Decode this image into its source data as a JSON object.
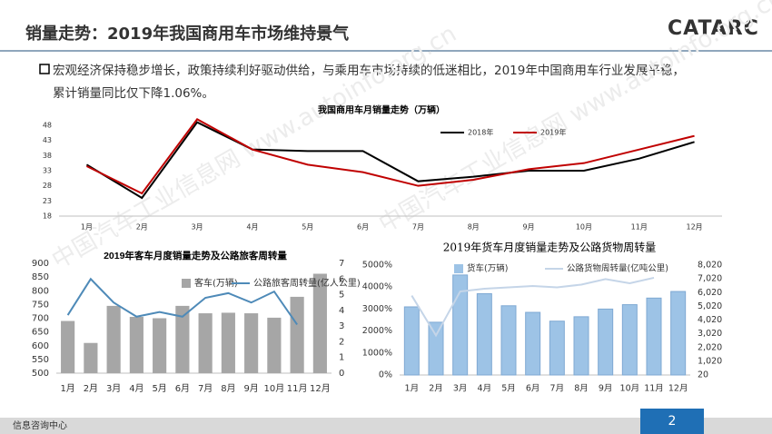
{
  "header": {
    "title": "销量走势：2019年我国商用车市场维持景气",
    "logo": "CATARC"
  },
  "bullet": {
    "lines": [
      "宏观经济保持稳步增长，政策持续利好驱动供给，与乘用车市场持续的低迷相比，2019年中国商用车行业发展平稳，",
      "累计销量同比仅下降1.06%。"
    ]
  },
  "watermark": "中国汽车工业信息网 www.autoinfo.org.cn",
  "footer": {
    "org": "信息咨询中心",
    "page": "2"
  },
  "chart_data": [
    {
      "type": "line",
      "title": "我国商用车月销量走势（万辆）",
      "categories": [
        "1月",
        "2月",
        "3月",
        "4月",
        "5月",
        "6月",
        "7月",
        "8月",
        "9月",
        "10月",
        "11月",
        "12月"
      ],
      "ylim": [
        18,
        51
      ],
      "yticks": [
        18,
        23,
        28,
        33,
        38,
        43,
        48
      ],
      "series": [
        {
          "name": "2018年",
          "type": "line",
          "color": "#000000",
          "values": [
            35,
            24,
            49,
            40,
            39.5,
            39.5,
            29.5,
            31,
            33,
            33,
            37,
            42.5
          ]
        },
        {
          "name": "2019年",
          "type": "line",
          "color": "#c00000",
          "values": [
            34.5,
            25.5,
            50,
            40,
            35,
            32.5,
            28,
            30,
            33.5,
            35.5,
            40,
            44.5
          ]
        }
      ]
    },
    {
      "type": "bar",
      "title": "2019年客车月度销量走势及公路旅客周转量",
      "categories": [
        "1月",
        "2月",
        "3月",
        "4月",
        "5月",
        "6月",
        "7月",
        "8月",
        "9月",
        "10月",
        "11月",
        "12月"
      ],
      "ylim": [
        500,
        900
      ],
      "yticks": [
        500,
        550,
        600,
        650,
        700,
        750,
        800,
        850,
        900
      ],
      "y2lim": [
        0,
        7
      ],
      "y2ticks": [
        0,
        1,
        2,
        3,
        4,
        5,
        6,
        7
      ],
      "series": [
        {
          "name": "客车(万辆)",
          "type": "bar",
          "color": "#a6a6a6",
          "values": [
            690,
            610,
            745,
            705,
            700,
            745,
            718,
            720,
            718,
            702,
            778,
            862
          ]
        },
        {
          "name": "公路旅客周转量(亿人公里)",
          "type": "line",
          "axis": "y2",
          "color": "#4e8ab8",
          "values": [
            3.7,
            6,
            4.5,
            3.6,
            3.9,
            3.6,
            4.8,
            5.1,
            4.5,
            5.2,
            3.1,
            null
          ]
        }
      ]
    },
    {
      "type": "bar",
      "title": "2019年货车月度销量走势及公路货物周转量",
      "categories": [
        "1月",
        "2月",
        "3月",
        "4月",
        "5月",
        "6月",
        "7月",
        "8月",
        "9月",
        "10月",
        "11月",
        "12月"
      ],
      "ylim": [
        0,
        5000
      ],
      "yticks": [
        {
          "value": 0,
          "label": "0%"
        },
        {
          "value": 1000,
          "label": "1000%"
        },
        {
          "value": 2000,
          "label": "2000%"
        },
        {
          "value": 3000,
          "label": "3000%"
        },
        {
          "value": 4000,
          "label": "4000%"
        },
        {
          "value": 5000,
          "label": "5000%"
        }
      ],
      "y2lim": [
        20,
        8020
      ],
      "y2ticks": [
        20,
        {
          "value": 1020,
          "label": "1,020"
        },
        {
          "value": 2020,
          "label": "2,020"
        },
        {
          "value": 3020,
          "label": "3,020"
        },
        {
          "value": 4020,
          "label": "4,020"
        },
        {
          "value": 5020,
          "label": "5,020"
        },
        {
          "value": 6020,
          "label": "6,020"
        },
        {
          "value": 7020,
          "label": "7,020"
        },
        {
          "value": 8020,
          "label": "8,020"
        }
      ],
      "series": [
        {
          "name": "货车(万辆)",
          "type": "bar",
          "color": "#9dc3e6",
          "values": [
            3100,
            2400,
            4550,
            3700,
            3150,
            2850,
            2450,
            2650,
            3000,
            3200,
            3500,
            3800
          ]
        },
        {
          "name": "公路货物周转量(亿吨公里)",
          "type": "line",
          "axis": "y2",
          "color": "#c5d5e8",
          "values": [
            5800,
            2900,
            6100,
            6300,
            6400,
            6500,
            6400,
            6600,
            7000,
            6700,
            7100,
            null
          ]
        }
      ]
    }
  ]
}
